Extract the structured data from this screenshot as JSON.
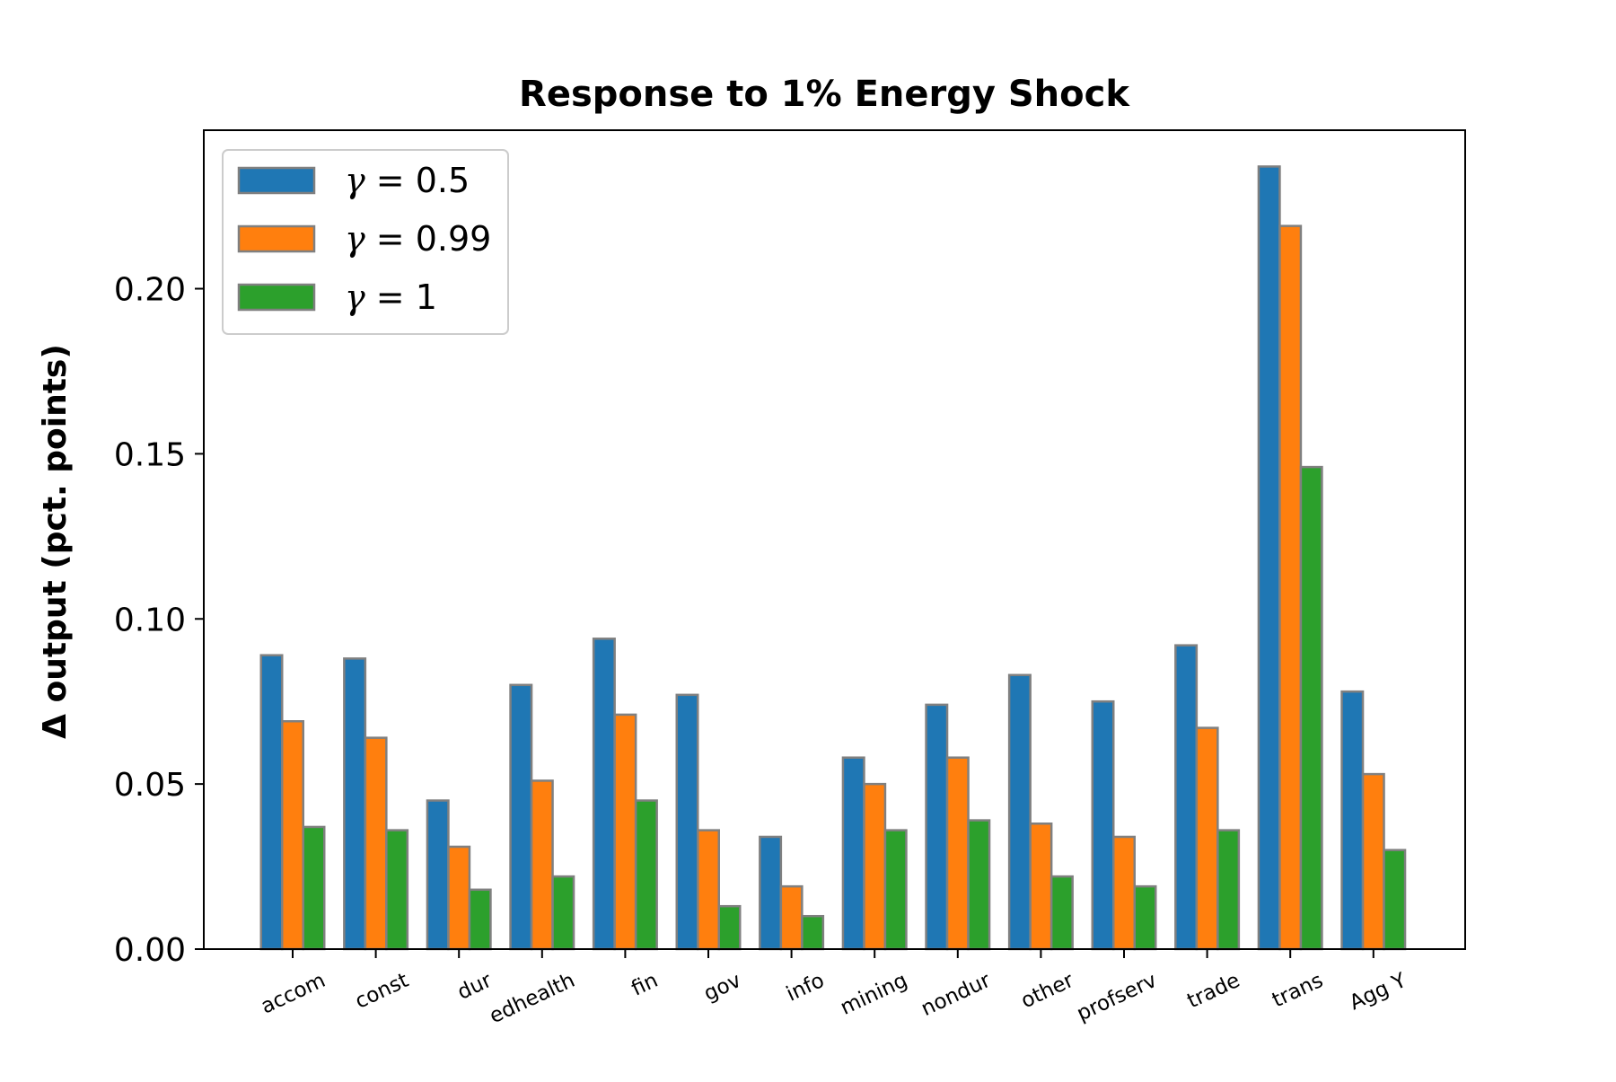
{
  "chart_data": {
    "type": "bar",
    "title": "Response to 1% Energy Shock",
    "xlabel": "",
    "ylabel": "Δ output (pct. points)",
    "ylim": [
      0,
      0.248
    ],
    "yticks": [
      0.0,
      0.05,
      0.1,
      0.15,
      0.2
    ],
    "ytick_labels": [
      "0.00",
      "0.05",
      "0.10",
      "0.15",
      "0.20"
    ],
    "grid": false,
    "legend_position": "top-left",
    "categories": [
      "accom",
      "const",
      "dur",
      "edhealth",
      "fin",
      "gov",
      "info",
      "mining",
      "nondur",
      "other",
      "profserv",
      "trade",
      "trans",
      "Agg Y"
    ],
    "series": [
      {
        "name": "γ = 0.5",
        "symbol": "γ",
        "label_rest": " = 0.5",
        "color": "#1f77b4",
        "values": [
          0.089,
          0.088,
          0.045,
          0.08,
          0.094,
          0.077,
          0.034,
          0.058,
          0.074,
          0.083,
          0.075,
          0.092,
          0.237,
          0.078
        ]
      },
      {
        "name": "γ = 0.99",
        "symbol": "γ",
        "label_rest": " = 0.99",
        "color": "#ff7f0e",
        "values": [
          0.069,
          0.064,
          0.031,
          0.051,
          0.071,
          0.036,
          0.019,
          0.05,
          0.058,
          0.038,
          0.034,
          0.067,
          0.219,
          0.053
        ]
      },
      {
        "name": "γ = 1",
        "symbol": "γ",
        "label_rest": " = 1",
        "color": "#2ca02c",
        "values": [
          0.037,
          0.036,
          0.018,
          0.022,
          0.045,
          0.013,
          0.01,
          0.036,
          0.039,
          0.022,
          0.019,
          0.036,
          0.146,
          0.03
        ]
      }
    ],
    "bar_edge_color": "#808080"
  }
}
